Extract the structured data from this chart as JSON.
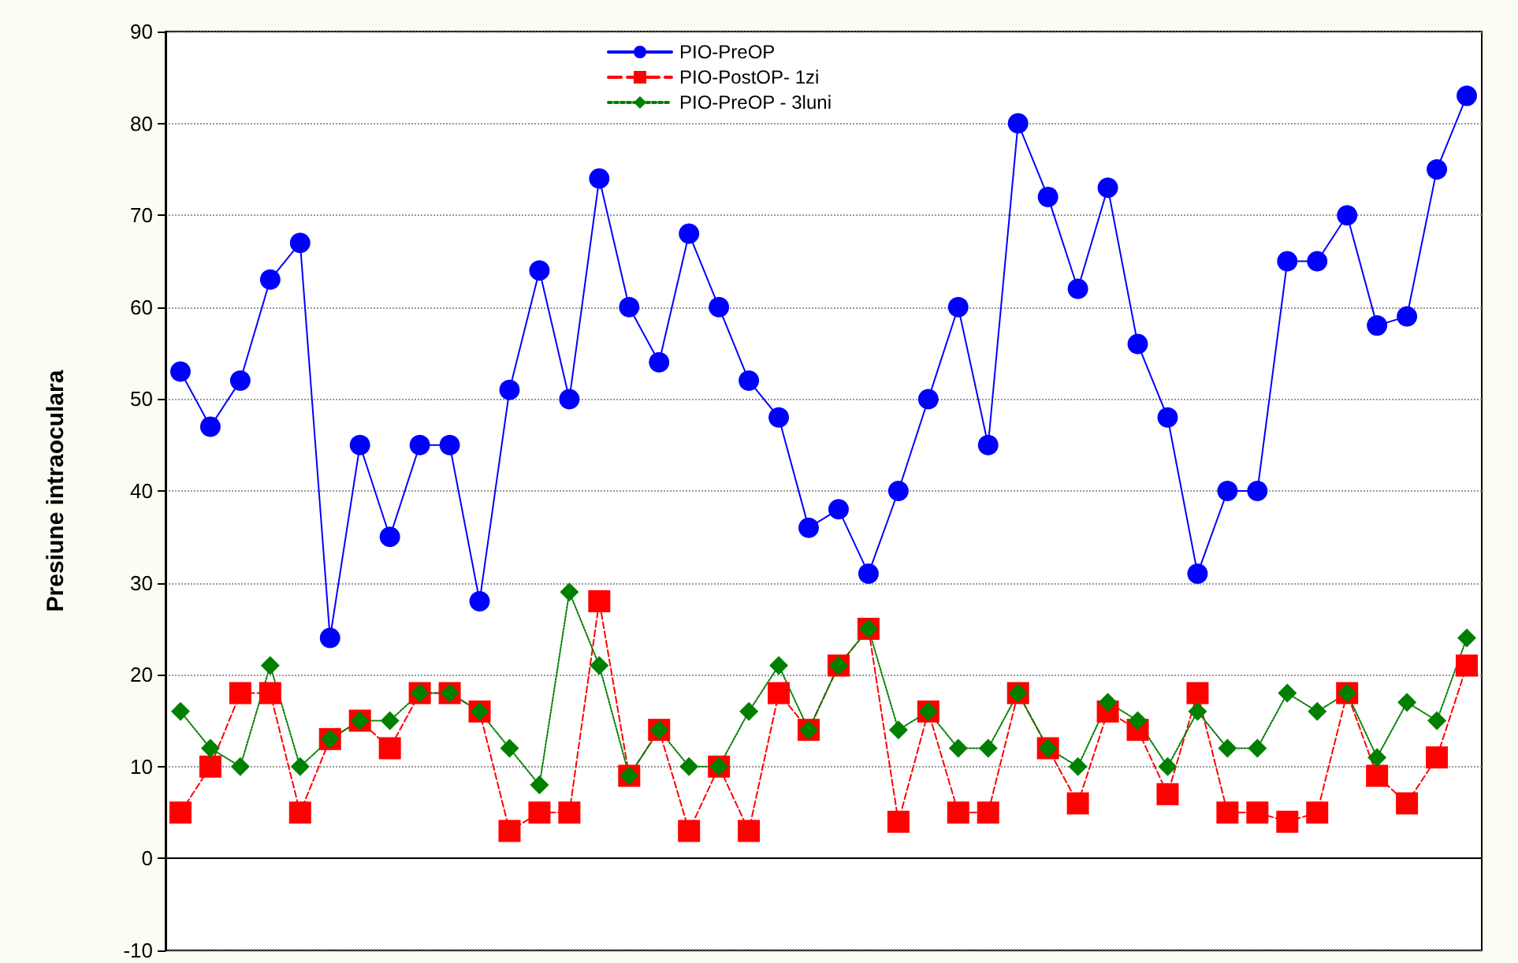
{
  "chart_data": {
    "type": "line",
    "ylabel": "Presiune intraoculara",
    "categories": [
      null,
      null,
      null,
      null,
      null,
      null,
      null,
      null,
      null,
      null,
      null,
      null,
      null,
      null,
      null,
      null,
      null,
      null,
      null,
      null,
      null,
      null,
      null,
      null,
      null,
      null,
      null,
      null,
      null,
      null,
      null,
      null,
      null,
      null,
      null,
      null,
      null,
      null,
      null,
      null,
      null,
      null,
      null,
      null
    ],
    "series": [
      {
        "name": "PIO-PreOP",
        "color": "#0000ff",
        "marker": "circle",
        "line_style": "solid",
        "values": [
          53,
          47,
          52,
          63,
          67,
          24,
          45,
          35,
          45,
          45,
          28,
          51,
          64,
          50,
          74,
          60,
          54,
          68,
          60,
          52,
          48,
          36,
          38,
          31,
          40,
          50,
          60,
          45,
          80,
          72,
          62,
          73,
          56,
          48,
          31,
          40,
          40,
          65,
          65,
          70,
          58,
          59,
          75,
          83
        ]
      },
      {
        "name": "PIO-PostOP- 1zi",
        "color": "#ff0000",
        "marker": "square",
        "line_style": "dashed",
        "values": [
          5,
          10,
          18,
          18,
          5,
          13,
          15,
          12,
          18,
          18,
          16,
          3,
          5,
          5,
          28,
          9,
          14,
          3,
          10,
          3,
          18,
          14,
          21,
          25,
          4,
          16,
          5,
          5,
          18,
          12,
          6,
          16,
          14,
          7,
          18,
          5,
          5,
          4,
          5,
          18,
          9,
          6,
          11,
          21
        ]
      },
      {
        "name": "PIO-PreOP - 3luni",
        "color": "#008000",
        "marker": "diamond",
        "line_style": "dotted",
        "values": [
          16,
          12,
          10,
          21,
          10,
          13,
          15,
          15,
          18,
          18,
          16,
          12,
          8,
          29,
          21,
          9,
          14,
          10,
          10,
          16,
          21,
          14,
          21,
          25,
          14,
          16,
          12,
          12,
          18,
          12,
          10,
          17,
          15,
          10,
          16,
          12,
          12,
          18,
          16,
          18,
          11,
          17,
          15,
          24
        ]
      }
    ],
    "ylim": [
      -10,
      90
    ],
    "yticks": [
      -10,
      0,
      10,
      20,
      30,
      40,
      50,
      60,
      70,
      80,
      90
    ],
    "grid": "y",
    "legend": "top",
    "tick_labels": "y"
  }
}
